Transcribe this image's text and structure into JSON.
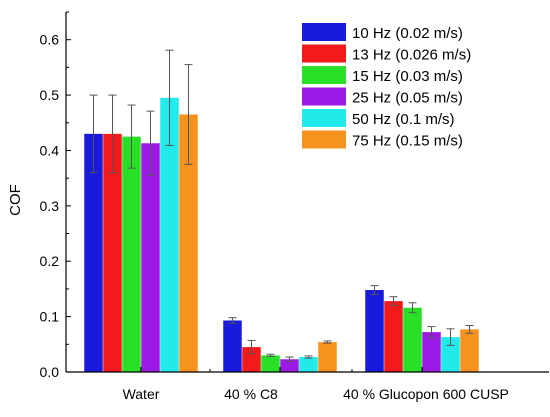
{
  "chart_data": {
    "type": "bar",
    "title": "",
    "xlabel": "",
    "ylabel": "COF",
    "ylim": [
      0,
      0.65
    ],
    "yticks": [
      "0.0",
      "0.1",
      "0.2",
      "0.3",
      "0.4",
      "0.5",
      "0.6"
    ],
    "categories": [
      "Water",
      "40 % C8",
      "40 % Glucopon 600 CUSP"
    ],
    "grid": false,
    "legend_position": "top-right",
    "series": [
      {
        "name": "10 Hz (0.02 m/s)",
        "color": "#1a1adc",
        "values": [
          0.43,
          0.093,
          0.148
        ],
        "errors": [
          0.07,
          0.005,
          0.008
        ]
      },
      {
        "name": "13 Hz (0.026 m/s)",
        "color": "#f21a1a",
        "values": [
          0.43,
          0.045,
          0.128
        ],
        "errors": [
          0.07,
          0.012,
          0.008
        ]
      },
      {
        "name": "15 Hz (0.03 m/s)",
        "color": "#28e028",
        "values": [
          0.425,
          0.03,
          0.116
        ],
        "errors": [
          0.057,
          0.002,
          0.009
        ]
      },
      {
        "name": "25 Hz (0.05 m/s)",
        "color": "#9b1ae6",
        "values": [
          0.413,
          0.023,
          0.072
        ],
        "errors": [
          0.058,
          0.004,
          0.01
        ]
      },
      {
        "name": "50 Hz (0.1 m/s)",
        "color": "#22eaea",
        "values": [
          0.495,
          0.027,
          0.063
        ],
        "errors": [
          0.086,
          0.002,
          0.015
        ]
      },
      {
        "name": "75 Hz (0.15 m/s)",
        "color": "#f7921e",
        "values": [
          0.465,
          0.054,
          0.077
        ],
        "errors": [
          0.09,
          0.002,
          0.007
        ]
      }
    ]
  }
}
